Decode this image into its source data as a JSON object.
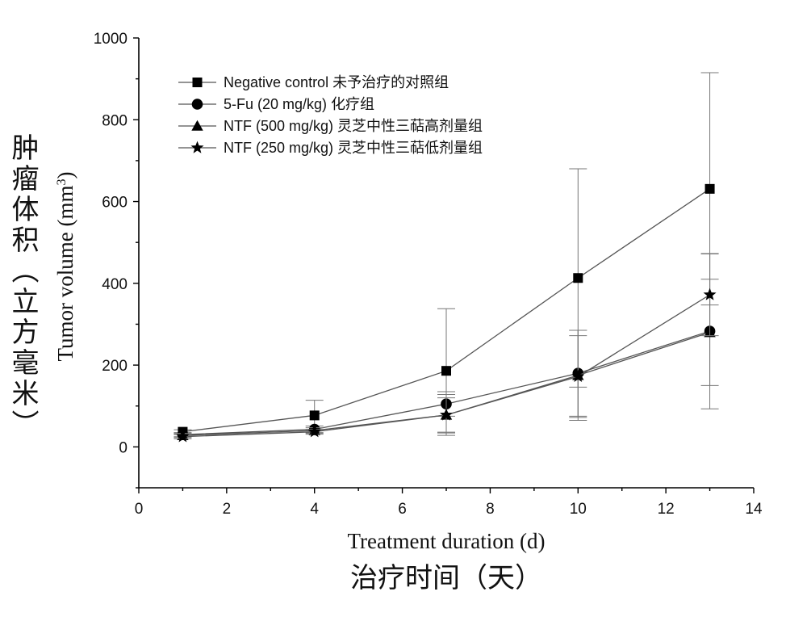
{
  "chart_data": {
    "type": "line",
    "xlabel": "Treatment duration (d)",
    "xlabel_cn": "治疗时间（天）",
    "ylabel": "Tumor volume (mm",
    "ylabel_sup": "3",
    "ylabel_close": ")",
    "ylabel_cn": "肿瘤体积（立方毫米）",
    "xlim": [
      0,
      14
    ],
    "ylim": [
      -100,
      1000
    ],
    "x_ticks": [
      "0",
      "2",
      "4",
      "6",
      "8",
      "10",
      "12",
      "14"
    ],
    "y_ticks": [
      "0",
      "200",
      "400",
      "600",
      "800",
      "1000"
    ],
    "grid": false,
    "legend_position": "top-left",
    "x": [
      1,
      4,
      7,
      10,
      13
    ],
    "series": [
      {
        "name": "Negative control",
        "name_cn": "未予治疗的对照组",
        "marker": "square",
        "values": [
          37,
          77,
          186,
          413,
          631
        ],
        "errors": [
          5,
          37,
          152,
          267,
          284
        ]
      },
      {
        "name": "5-Fu (20 mg/kg)",
        "name_cn": "化疗组",
        "marker": "circle",
        "values": [
          30,
          43,
          105,
          180,
          283
        ],
        "errors": [
          5,
          8,
          30,
          105,
          190
        ]
      },
      {
        "name": "NTF (500 mg/kg)",
        "name_cn": "灵芝中性三萜高剂量组",
        "marker": "triangle",
        "values": [
          28,
          40,
          78,
          175,
          280
        ],
        "errors": [
          5,
          7,
          42,
          110,
          130
        ]
      },
      {
        "name": "NTF (250 mg/kg)",
        "name_cn": "灵芝中性三萜低剂量组",
        "marker": "star",
        "values": [
          25,
          37,
          78,
          172,
          372
        ],
        "errors": [
          5,
          6,
          50,
          100,
          100
        ]
      }
    ]
  }
}
